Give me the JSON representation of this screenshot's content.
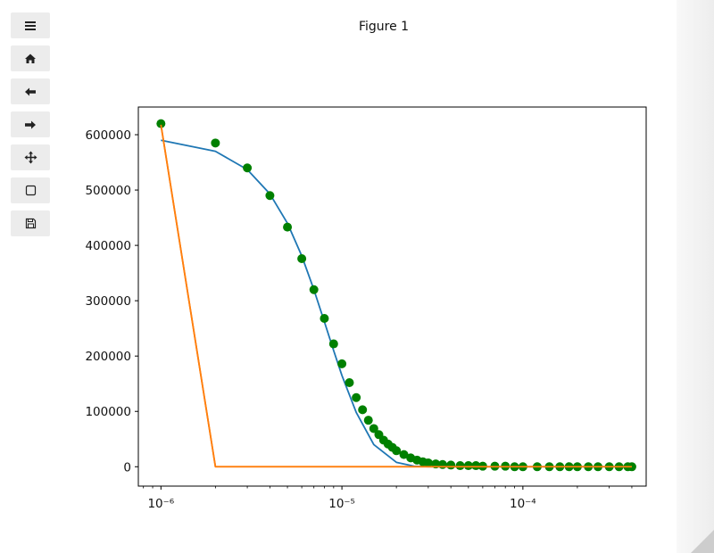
{
  "window": {
    "figure_title": "Figure 1"
  },
  "toolbar": {
    "buttons": [
      {
        "icon": "menu-icon",
        "label": "≡"
      },
      {
        "icon": "home-icon",
        "label": "⌂"
      },
      {
        "icon": "back-arrow-icon",
        "label": "←"
      },
      {
        "icon": "forward-arrow-icon",
        "label": "→"
      },
      {
        "icon": "pan-icon",
        "label": "✥"
      },
      {
        "icon": "zoom-rect-icon",
        "label": "□"
      },
      {
        "icon": "save-icon",
        "label": "💾"
      }
    ]
  },
  "chart_data": {
    "type": "line",
    "title": "",
    "xlabel": "",
    "ylabel": "",
    "xscale": "log",
    "xlim": [
      7.5e-07,
      0.00048
    ],
    "ylim": [
      -35000,
      650000
    ],
    "xticks": [
      {
        "value": 1e-06,
        "label": "10⁻⁶"
      },
      {
        "value": 1e-05,
        "label": "10⁻⁵"
      },
      {
        "value": 0.0001,
        "label": "10⁻⁴"
      }
    ],
    "yticks": [
      {
        "value": 0,
        "label": "0"
      },
      {
        "value": 100000,
        "label": "100000"
      },
      {
        "value": 200000,
        "label": "200000"
      },
      {
        "value": 300000,
        "label": "300000"
      },
      {
        "value": 400000,
        "label": "400000"
      },
      {
        "value": 500000,
        "label": "500000"
      },
      {
        "value": 600000,
        "label": "600000"
      }
    ],
    "grid": false,
    "legend": "none",
    "series": [
      {
        "kind": "line",
        "color": "#1f77b4",
        "x": [
          1e-06,
          2e-06,
          3e-06,
          4e-06,
          5e-06,
          6e-06,
          7e-06,
          8e-06,
          9e-06,
          1e-05,
          1.2e-05,
          1.5e-05,
          2e-05,
          2.5e-05,
          3e-05,
          4e-05,
          0.0001,
          0.0004
        ],
        "y": [
          590000,
          570000,
          537000,
          493000,
          440000,
          381000,
          320000,
          262000,
          210000,
          165000,
          98000,
          40000,
          8000,
          1000,
          0,
          0,
          0,
          0
        ]
      },
      {
        "kind": "line",
        "color": "#ff7f0e",
        "x": [
          1e-06,
          2e-06,
          0.0004
        ],
        "y": [
          618000,
          0,
          0
        ]
      },
      {
        "kind": "scatter",
        "color": "#008000",
        "x": [
          1e-06,
          2e-06,
          3e-06,
          4e-06,
          5e-06,
          6e-06,
          7e-06,
          8e-06,
          9e-06,
          1e-05,
          1.1e-05,
          1.2e-05,
          1.3e-05,
          1.4e-05,
          1.5e-05,
          1.6e-05,
          1.7e-05,
          1.8e-05,
          1.9e-05,
          2e-05,
          2.2e-05,
          2.4e-05,
          2.6e-05,
          2.8e-05,
          3e-05,
          3.3e-05,
          3.6e-05,
          4e-05,
          4.5e-05,
          5e-05,
          5.5e-05,
          6e-05,
          7e-05,
          8e-05,
          9e-05,
          0.0001,
          0.00012,
          0.00014,
          0.00016,
          0.00018,
          0.0002,
          0.00023,
          0.00026,
          0.0003,
          0.00034,
          0.00038,
          0.0004
        ],
        "y": [
          620000,
          585000,
          540000,
          490000,
          433000,
          376000,
          320000,
          268000,
          222000,
          186000,
          152000,
          125000,
          103000,
          84000,
          69000,
          58000,
          48000,
          41000,
          35000,
          29000,
          22000,
          16000,
          12000,
          9000,
          7000,
          5000,
          4000,
          3000,
          2000,
          2000,
          2000,
          1000,
          1000,
          1000,
          0,
          0,
          0,
          0,
          0,
          0,
          0,
          0,
          0,
          0,
          0,
          0,
          0
        ]
      }
    ]
  }
}
